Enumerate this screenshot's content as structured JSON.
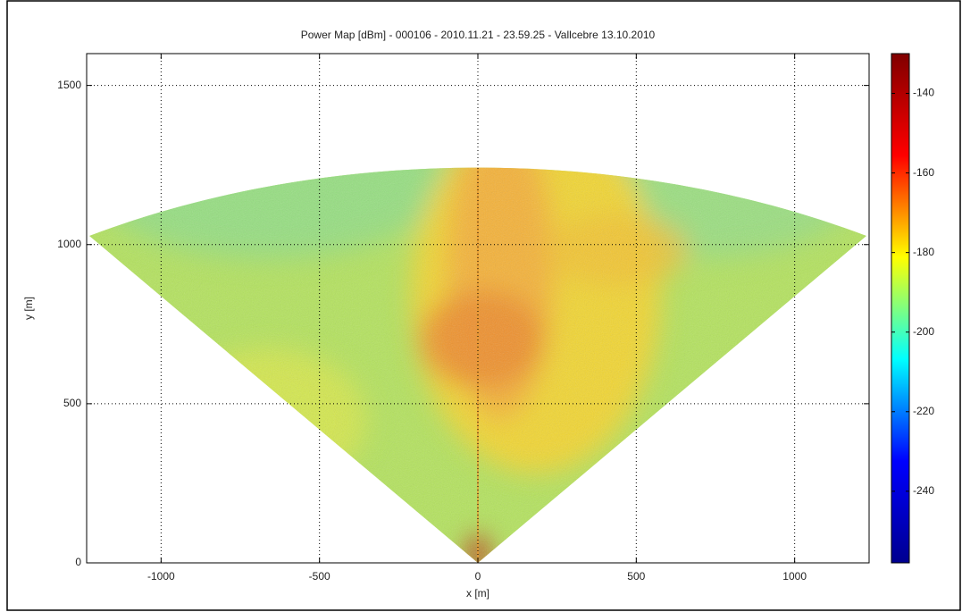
{
  "chart_data": {
    "type": "heatmap",
    "title": "Power Map [dBm] - 000106 - 2010.11.21 - 23.59.25 - Vallcebre 13.10.2010",
    "x_label": "x [m]",
    "y_label": "y [m]",
    "xlim": [
      -1235,
      1235
    ],
    "xticks": [
      -1000,
      -500,
      0,
      500,
      1000
    ],
    "ylim": [
      0,
      1600
    ],
    "yticks": [
      0,
      500,
      1000,
      1500
    ],
    "grid": true,
    "colorbar": {
      "lim": [
        -258,
        -130
      ],
      "ticks": [
        -240,
        -220,
        -200,
        -180,
        -160,
        -140
      ],
      "colormap": "jet"
    }
  }
}
